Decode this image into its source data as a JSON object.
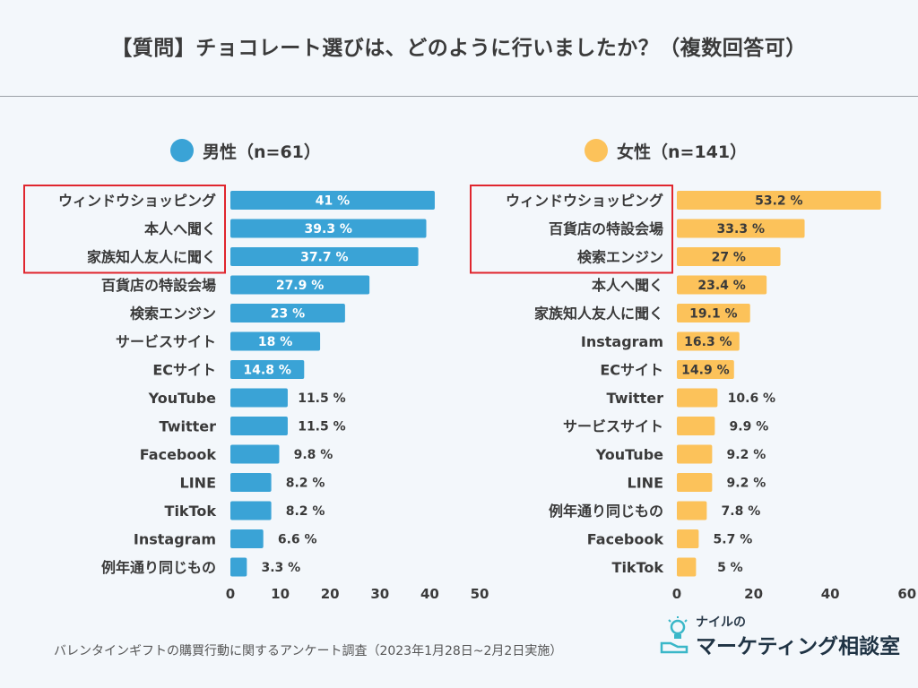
{
  "header": {
    "title": "【質問】チョコレート選びは、どのように行いましたか？（複数回答可）"
  },
  "footer": {
    "source": "バレンタインギフトの購買行動に関するアンケート調査（2023年1月28日~2月2日実施）"
  },
  "logo": {
    "top_text": "ナイルの",
    "main_text": "マーケティング",
    "suffix": "相談室"
  },
  "colors": {
    "male": "#3aa3d6",
    "female": "#fcc25a",
    "highlight_box": "#e0262e"
  },
  "chart_data": [
    {
      "type": "bar",
      "orientation": "horizontal",
      "title": "男性（n=61）",
      "legend": "男性（n=61）",
      "categories": [
        "ウィンドウショッピング",
        "本人へ聞く",
        "家族知人友人に聞く",
        "百貨店の特設会場",
        "検索エンジン",
        "サービスサイト",
        "ECサイト",
        "YouTube",
        "Twitter",
        "Facebook",
        "LINE",
        "TikTok",
        "Instagram",
        "例年通り同じもの"
      ],
      "values": [
        41,
        39.3,
        37.7,
        27.9,
        23,
        18,
        14.8,
        11.5,
        11.5,
        9.8,
        8.2,
        8.2,
        6.6,
        3.3
      ],
      "labels": [
        "41 %",
        "39.3 %",
        "37.7 %",
        "27.9 %",
        "23 %",
        "18 %",
        "14.8 %",
        "11.5 %",
        "11.5 %",
        "9.8 %",
        "8.2 %",
        "8.2 %",
        "6.6 %",
        "3.3 %"
      ],
      "xlim": [
        0,
        50
      ],
      "ticks": [
        "0",
        "10",
        "20",
        "30",
        "40",
        "50"
      ],
      "highlight_top": 3,
      "unit": "%"
    },
    {
      "type": "bar",
      "orientation": "horizontal",
      "title": "女性（n=141）",
      "legend": "女性（n=141）",
      "categories": [
        "ウィンドウショッピング",
        "百貨店の特設会場",
        "検索エンジン",
        "本人へ聞く",
        "家族知人友人に聞く",
        "Instagram",
        "ECサイト",
        "Twitter",
        "サービスサイト",
        "YouTube",
        "LINE",
        "例年通り同じもの",
        "Facebook",
        "TikTok"
      ],
      "values": [
        53.2,
        33.3,
        27,
        23.4,
        19.1,
        16.3,
        14.9,
        10.6,
        9.9,
        9.2,
        9.2,
        7.8,
        5.7,
        5
      ],
      "labels": [
        "53.2 %",
        "33.3 %",
        "27 %",
        "23.4 %",
        "19.1 %",
        "16.3 %",
        "14.9 %",
        "10.6 %",
        "9.9 %",
        "9.2 %",
        "9.2 %",
        "7.8 %",
        "5.7 %",
        "5 %"
      ],
      "xlim": [
        0,
        60
      ],
      "ticks": [
        "0",
        "20",
        "40",
        "60"
      ],
      "highlight_top": 3,
      "unit": "%"
    }
  ]
}
